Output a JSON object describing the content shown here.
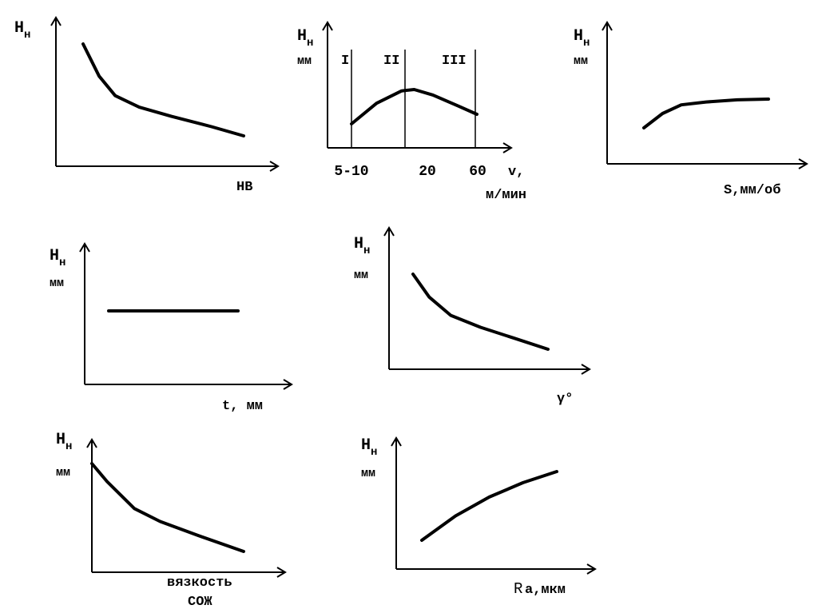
{
  "chart_data": [
    {
      "type": "line",
      "ylabel_main": "H",
      "ylabel_sub": "н",
      "ylabel_unit": "",
      "xlabel": [
        "HB"
      ],
      "x": [
        0,
        0.1,
        0.2,
        0.35,
        0.55,
        0.8,
        1.0
      ],
      "values": [
        1.0,
        0.72,
        0.55,
        0.45,
        0.37,
        0.28,
        0.2
      ]
    },
    {
      "type": "line",
      "ylabel_main": "H",
      "ylabel_sub": "н",
      "ylabel_unit": "мм",
      "xlabel": [
        "v,",
        "м/мин"
      ],
      "tick_labels": [
        "5-10",
        "20",
        "60"
      ],
      "zones": [
        "I",
        "II",
        "III"
      ],
      "x": [
        0,
        0.2,
        0.4,
        0.5,
        0.65,
        0.85,
        1.0
      ],
      "values": [
        0.4,
        0.7,
        0.88,
        0.9,
        0.82,
        0.66,
        0.54
      ]
    },
    {
      "type": "line",
      "ylabel_main": "H",
      "ylabel_sub": "н",
      "ylabel_unit": "мм",
      "xlabel": [
        "S,мм/об"
      ],
      "x": [
        0,
        0.15,
        0.3,
        0.5,
        0.75,
        1.0
      ],
      "values": [
        0.35,
        0.55,
        0.67,
        0.71,
        0.74,
        0.75
      ]
    },
    {
      "type": "line",
      "ylabel_main": "H",
      "ylabel_sub": "н",
      "ylabel_unit": "мм",
      "xlabel": [
        "t, мм"
      ],
      "x": [
        0,
        1.0
      ],
      "values": [
        0.6,
        0.6
      ]
    },
    {
      "type": "line",
      "ylabel_main": "H",
      "ylabel_sub": "н",
      "ylabel_unit": "мм",
      "xlabel": [
        "γ°"
      ],
      "x": [
        0,
        0.12,
        0.28,
        0.5,
        0.75,
        1.0
      ],
      "values": [
        1.0,
        0.75,
        0.55,
        0.42,
        0.3,
        0.18
      ]
    },
    {
      "type": "line",
      "ylabel_main": "H",
      "ylabel_sub": "н",
      "ylabel_unit": "мм",
      "xlabel": [
        "вязкость",
        "СОЖ"
      ],
      "x": [
        0,
        0.1,
        0.28,
        0.45,
        0.7,
        1.0
      ],
      "values": [
        1.0,
        0.82,
        0.55,
        0.42,
        0.28,
        0.12
      ]
    },
    {
      "type": "line",
      "ylabel_main": "H",
      "ylabel_sub": "н",
      "ylabel_unit": "мм",
      "xlabel": [
        "R",
        "а,мкм"
      ],
      "x": [
        0,
        0.25,
        0.5,
        0.75,
        1.0
      ],
      "values": [
        0.35,
        0.57,
        0.74,
        0.87,
        0.97
      ]
    }
  ]
}
